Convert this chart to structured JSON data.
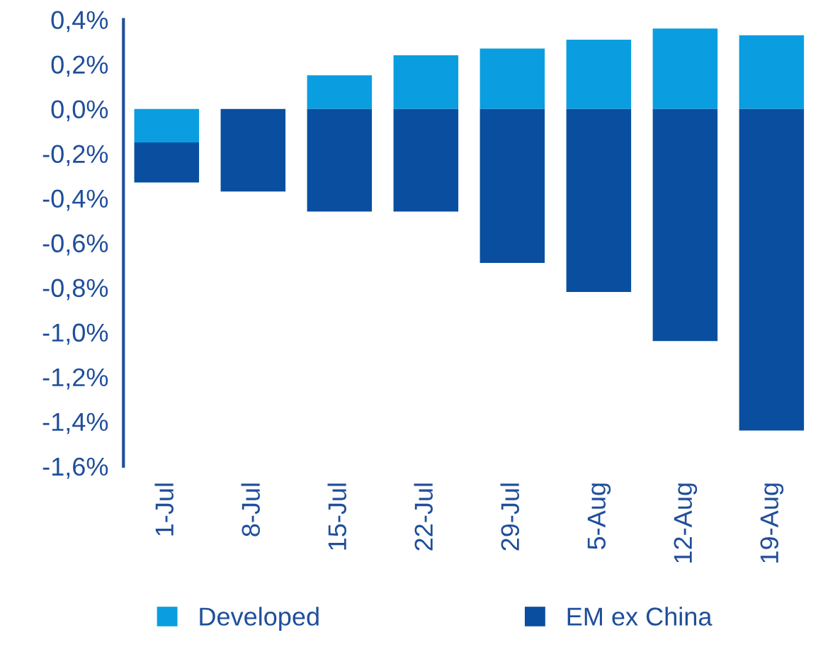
{
  "chart_data": {
    "type": "bar",
    "stacked": true,
    "categories": [
      "1-Jul",
      "8-Jul",
      "15-Jul",
      "22-Jul",
      "29-Jul",
      "5-Aug",
      "12-Aug",
      "19-Aug"
    ],
    "series": [
      {
        "name": "Developed",
        "color": "#0a9ee0",
        "values": [
          -0.15,
          null,
          0.15,
          0.24,
          0.27,
          0.31,
          0.36,
          0.33
        ]
      },
      {
        "name": "EM ex China",
        "color": "#0a4f9f",
        "values": [
          -0.18,
          -0.37,
          -0.46,
          -0.46,
          -0.69,
          -0.82,
          -1.04,
          -1.44
        ]
      }
    ],
    "ylim": [
      -1.6,
      0.4
    ],
    "yticks": [
      {
        "value": 0.4,
        "label": "0,4%"
      },
      {
        "value": 0.2,
        "label": "0,2%"
      },
      {
        "value": 0,
        "label": "0,0%"
      },
      {
        "value": -0.2,
        "label": "-0,2%"
      },
      {
        "value": -0.4,
        "label": "-0,4%"
      },
      {
        "value": -0.6,
        "label": "-0,6%"
      },
      {
        "value": -0.8,
        "label": "-0,8%"
      },
      {
        "value": -1.0,
        "label": "-1,0%"
      },
      {
        "value": -1.2,
        "label": "-1,2%"
      },
      {
        "value": -1.4,
        "label": "-1,4%"
      },
      {
        "value": -1.6,
        "label": "-1,6%"
      }
    ],
    "grid": false,
    "legend": "bottom"
  }
}
